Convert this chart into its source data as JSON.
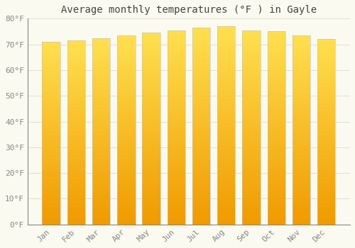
{
  "title": "Average monthly temperatures (°F ) in Gayle",
  "months": [
    "Jan",
    "Feb",
    "Mar",
    "Apr",
    "May",
    "Jun",
    "Jul",
    "Aug",
    "Sep",
    "Oct",
    "Nov",
    "Dec"
  ],
  "values": [
    71,
    71.5,
    72.5,
    73.5,
    74.5,
    75.5,
    76.5,
    77,
    75.5,
    75,
    73.5,
    72
  ],
  "ylim": [
    0,
    80
  ],
  "yticks": [
    0,
    10,
    20,
    30,
    40,
    50,
    60,
    70,
    80
  ],
  "ytick_labels": [
    "0°F",
    "10°F",
    "20°F",
    "30°F",
    "40°F",
    "50°F",
    "60°F",
    "70°F",
    "80°F"
  ],
  "bar_color_bottom": "#F0A000",
  "bar_color_mid": "#F5B800",
  "bar_color_top": "#FFE060",
  "background_color": "#FAFAF0",
  "grid_color": "#E0E0D0",
  "title_fontsize": 10,
  "tick_fontsize": 8,
  "bar_width": 0.72,
  "bar_edge_color": "#C0C0C0",
  "bar_edge_width": 0.4
}
